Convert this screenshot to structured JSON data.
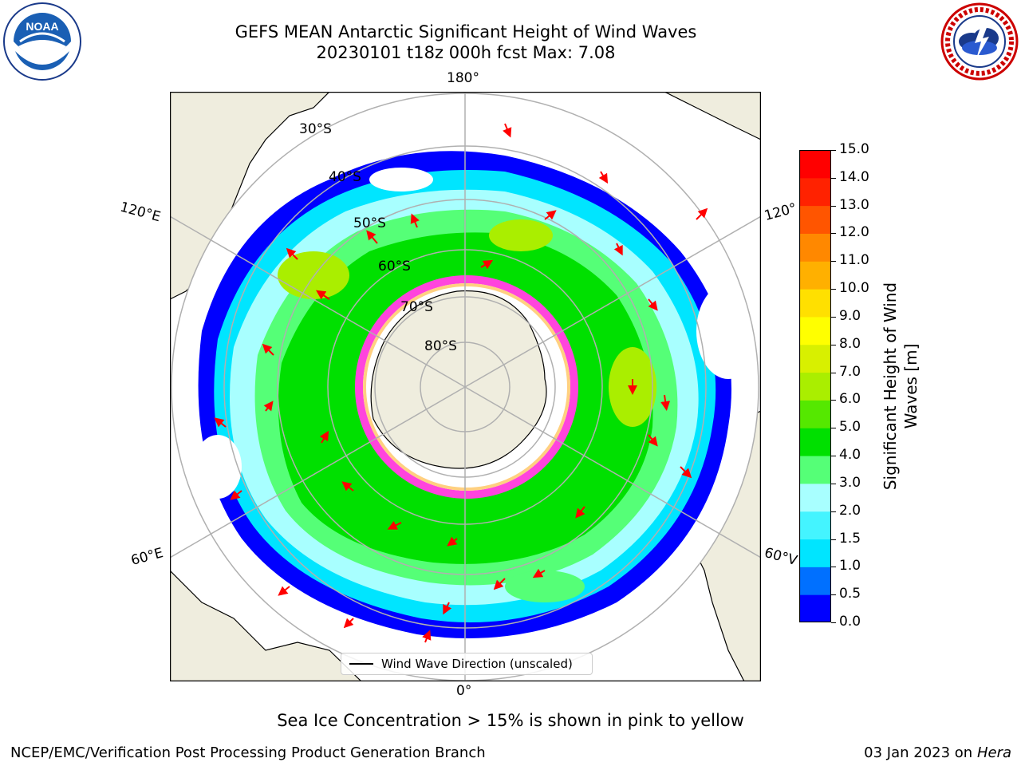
{
  "title": {
    "line1": "GEFS MEAN Antarctic Significant Height of Wind Waves",
    "line2": "20230101 t18z 000h fcst   Max: 7.08"
  },
  "logos": {
    "left": {
      "text": "NOAA",
      "icon": "noaa-logo"
    },
    "right": {
      "icon": "nws-logo"
    }
  },
  "map": {
    "projection": "south-polar-stereographic",
    "longitude_labels": {
      "top": "180°",
      "bottom": "0°",
      "left_upper": "120°E",
      "left_lower": "60°E",
      "right_upper": "120°",
      "right_lower": "60°V"
    },
    "latitude_labels": [
      "30°S",
      "40°S",
      "50°S",
      "60°S",
      "70°S",
      "80°S"
    ],
    "legend": "Wind Wave Direction (unscaled)",
    "colors": {
      "land": "#efedde",
      "grid": "#b0b0b0",
      "arrow": "#ff0000",
      "sea_ice": "#ff44dd"
    }
  },
  "colorbar": {
    "label": "Significant Height of Wind Waves [m]",
    "ticks": [
      "0.0",
      "0.5",
      "1.0",
      "1.5",
      "2.0",
      "3.0",
      "4.0",
      "5.0",
      "6.0",
      "7.0",
      "8.0",
      "9.0",
      "10.0",
      "11.0",
      "12.0",
      "13.0",
      "14.0",
      "15.0"
    ],
    "colors": [
      "#0000ff",
      "#0070ff",
      "#00e5ff",
      "#44f4ff",
      "#a8ffff",
      "#55ff77",
      "#00e000",
      "#55e800",
      "#aaee00",
      "#d8f000",
      "#ffff00",
      "#ffe000",
      "#ffb000",
      "#ff8800",
      "#ff5500",
      "#ff2200",
      "#ff0000"
    ]
  },
  "footnote": "Sea Ice Concentration > 15% is shown in pink to yellow",
  "credit": {
    "left": "NCEP/EMC/Verification Post Processing Product Generation Branch",
    "right_date": "03 Jan 2023 on ",
    "right_machine": "Hera"
  }
}
